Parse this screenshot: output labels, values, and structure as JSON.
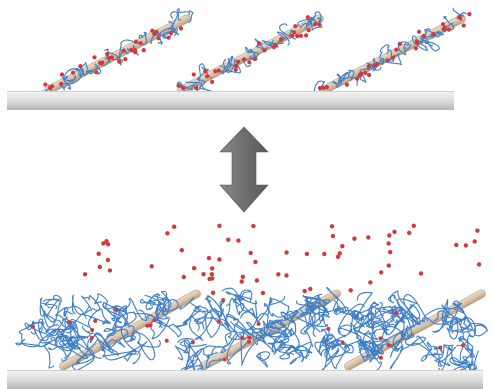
{
  "colors": {
    "substrate_light": "#f4f4f4",
    "substrate_dark": "#b5b5b5",
    "rod_fill": "#d9c3a9",
    "rod_edge": "#b89e80",
    "polymer": "#3f7fc7",
    "particle": "#d23a3a",
    "arrow": "#6e6e6e"
  },
  "icons": {
    "arrow": "double-headed-vertical-arrow"
  },
  "panels": [
    {
      "name": "top-panel-collapsed-state",
      "rods": 3
    },
    {
      "name": "bottom-panel-swollen-state",
      "rods": 3
    }
  ]
}
